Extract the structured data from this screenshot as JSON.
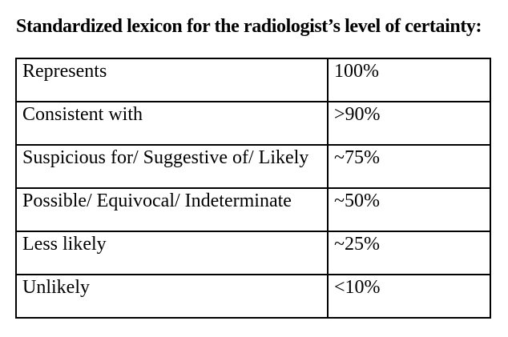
{
  "title": "Standardized lexicon for the radiologist’s level of certainty:",
  "table": {
    "rows": [
      {
        "term": "Represents",
        "certainty": "100%"
      },
      {
        "term": "Consistent with",
        "certainty": ">90%"
      },
      {
        "term": "Suspicious for/ Suggestive of/ Likely",
        "certainty": "~75%"
      },
      {
        "term": "Possible/ Equivocal/ Indeterminate",
        "certainty": "~50%"
      },
      {
        "term": "Less likely",
        "certainty": "~25%"
      },
      {
        "term": "Unlikely",
        "certainty": "<10%"
      }
    ]
  }
}
